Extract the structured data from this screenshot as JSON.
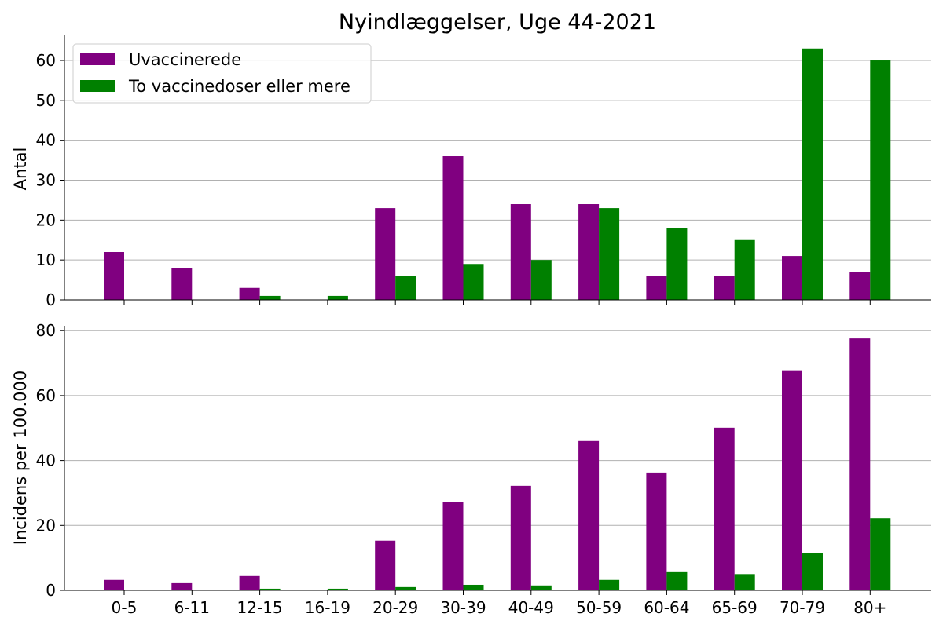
{
  "chart_data": {
    "title": "Nyindlæggelser, Uge 44-2021",
    "categories": [
      "0-5",
      "6-11",
      "12-15",
      "16-19",
      "20-29",
      "30-39",
      "40-49",
      "50-59",
      "60-64",
      "65-69",
      "70-79",
      "80+"
    ],
    "colors": {
      "Uvaccinerede": "#800080",
      "To vaccinedoser eller mere": "#008000"
    },
    "legend_position": "top-left",
    "grid": "horizontal",
    "panels": [
      {
        "type": "bar",
        "ylabel": "Antal",
        "ylim": [
          0,
          66.3
        ],
        "yticks": [
          0,
          10,
          20,
          30,
          40,
          50,
          60
        ],
        "show_x_tick_labels": false,
        "legend": true,
        "series": [
          {
            "name": "Uvaccinerede",
            "values": [
              12,
              8,
              3,
              0,
              23,
              36,
              24,
              24,
              6,
              6,
              11,
              7
            ]
          },
          {
            "name": "To vaccinedoser eller mere",
            "values": [
              0,
              0,
              1,
              1,
              6,
              9,
              10,
              23,
              18,
              15,
              63,
              60
            ]
          }
        ]
      },
      {
        "type": "bar",
        "ylabel": "Incidens per 100.000",
        "ylim": [
          0,
          81.5
        ],
        "yticks": [
          0,
          20,
          40,
          60,
          80
        ],
        "show_x_tick_labels": true,
        "legend": false,
        "series": [
          {
            "name": "Uvaccinerede",
            "values": [
              3.2,
              2.2,
              4.4,
              0,
              15.3,
              27.3,
              32.2,
              46,
              36.3,
              50.1,
              67.8,
              77.6
            ]
          },
          {
            "name": "To vaccinedoser eller mere",
            "values": [
              0,
              0,
              0.5,
              0.5,
              1,
              1.7,
              1.5,
              3.2,
              5.6,
              5,
              11.4,
              22.2
            ]
          }
        ]
      }
    ]
  }
}
